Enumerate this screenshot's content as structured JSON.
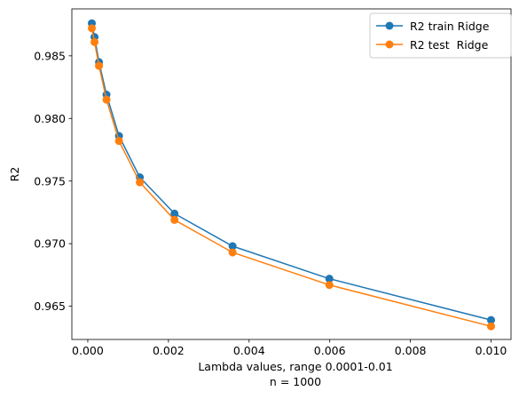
{
  "chart_data": {
    "type": "line",
    "title": "",
    "xlabel": "Lambda values, range 0.0001-0.01",
    "xlabel_line2": "n = 1000",
    "ylabel": "R2",
    "xlim": [
      -0.000395,
      0.010495
    ],
    "ylim": [
      0.96235,
      0.98875
    ],
    "x_ticks": [
      0.0,
      0.002,
      0.004,
      0.006,
      0.008,
      0.01
    ],
    "x_tick_labels": [
      "0.000",
      "0.002",
      "0.004",
      "0.006",
      "0.008",
      "0.010"
    ],
    "y_ticks": [
      0.965,
      0.97,
      0.975,
      0.98,
      0.985
    ],
    "y_tick_labels": [
      "0.965",
      "0.970",
      "0.975",
      "0.980",
      "0.985"
    ],
    "grid": false,
    "legend_position": "top-right",
    "x": [
      0.0001,
      0.000167,
      0.000278,
      0.000464,
      0.000774,
      0.00129,
      0.00215,
      0.00359,
      0.00599,
      0.01
    ],
    "series": [
      {
        "name": "R2 train Ridge",
        "color": "#1f77b4",
        "marker": "circle",
        "values": [
          0.9876,
          0.9865,
          0.9845,
          0.9819,
          0.9786,
          0.9753,
          0.9724,
          0.9698,
          0.9672,
          0.9639
        ]
      },
      {
        "name": "R2 test  Ridge",
        "color": "#ff7f0e",
        "marker": "circle",
        "values": [
          0.9872,
          0.9861,
          0.9842,
          0.9815,
          0.9782,
          0.9749,
          0.9719,
          0.9693,
          0.9667,
          0.9634
        ]
      }
    ]
  }
}
